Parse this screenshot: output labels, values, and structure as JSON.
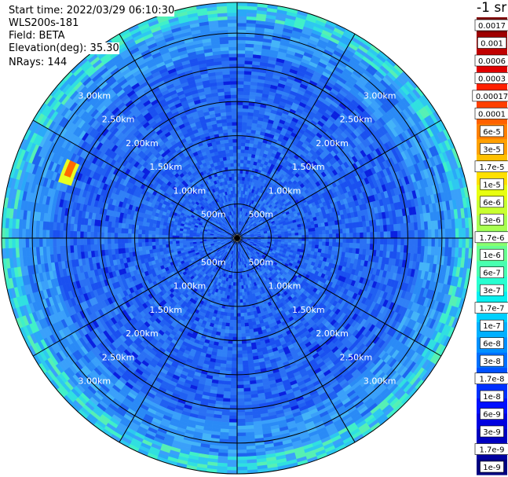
{
  "header": {
    "start_time": "Start time: 2022/03/29 06:10:30",
    "instrument": "WLS200s-181",
    "field": "Field: BETA",
    "elevation": "Elevation(deg): 35.30",
    "nrays": "NRays: 144"
  },
  "chart_data": {
    "type": "heatmap",
    "projection": "polar (PPI scan)",
    "range_rings": [
      "500m",
      "1.00km",
      "1.50km",
      "2.00km",
      "2.50km",
      "3.00km"
    ],
    "range_rings_km": [
      0.5,
      1.0,
      1.5,
      2.0,
      2.5,
      3.0
    ],
    "max_range_km": 3.45,
    "spokes_deg": [
      0,
      30,
      60,
      90,
      120,
      150,
      180,
      210,
      240,
      270,
      300,
      330
    ],
    "colorbar_title": "-1 sr",
    "colorbar_labels": [
      "0.0017",
      "0.001",
      "0.0006",
      "0.0003",
      "0.00017",
      "0.0001",
      "6e-5",
      "3e-5",
      "1.7e-5",
      "1e-5",
      "6e-6",
      "3e-6",
      "1.7e-6",
      "1e-6",
      "6e-7",
      "3e-7",
      "1.7e-7",
      "1e-7",
      "6e-8",
      "3e-8",
      "1.7e-8",
      "1e-8",
      "6e-9",
      "3e-9",
      "1.7e-9",
      "1e-9"
    ],
    "colorbar_colors": [
      "#7f0000",
      "#9c0000",
      "#c80000",
      "#ee0000",
      "#ff3000",
      "#ff5a00",
      "#ff8a00",
      "#ffb400",
      "#ffdc00",
      "#f4ff0a",
      "#c8ff2e",
      "#a0ff56",
      "#7cff7a",
      "#56ffa0",
      "#2effc8",
      "#0ae8f4",
      "#00c4ff",
      "#00a0ff",
      "#007cff",
      "#0058ff",
      "#0034ff",
      "#0014f0",
      "#0000d4",
      "#0000b0",
      "#00008c",
      "#000070"
    ],
    "colorbar_bg": [
      "#800000",
      "#a00000",
      "#c00000",
      "#e00000",
      "#ff2000",
      "#ff4000",
      "#ff6000",
      "#ff8000",
      "#ffa000",
      "#ffc000",
      "#ffe000",
      "#e8ff10",
      "#c8ff30",
      "#a8ff50",
      "#88ff70",
      "#68ff90",
      "#48ffb0",
      "#28ffd0",
      "#08f0f0",
      "#00d0ff",
      "#00b0ff",
      "#0090ff",
      "#0070ff",
      "#0050ff",
      "#0030ff",
      "#0010ff",
      "#0000e0",
      "#0000c0",
      "#0000a0",
      "#000080"
    ],
    "background_level_color": "#1e64f0",
    "hotspot": {
      "azimuth_deg": 292,
      "range_km": 2.65,
      "color": "#ff6a00"
    }
  }
}
